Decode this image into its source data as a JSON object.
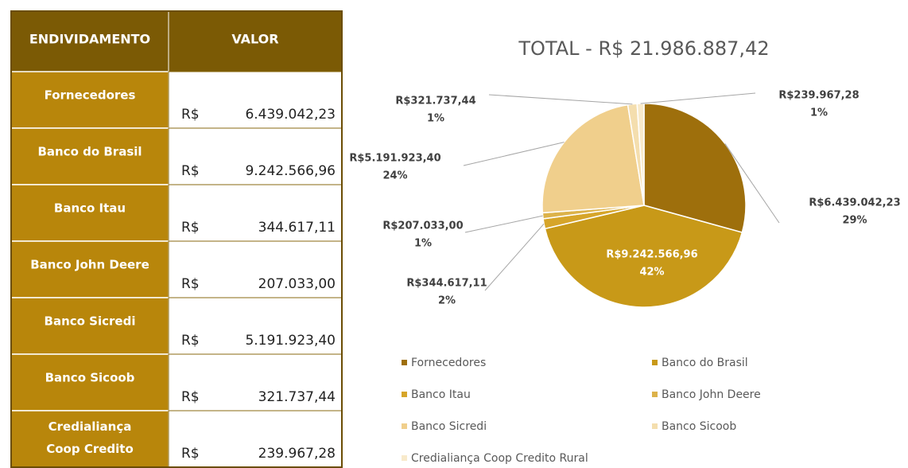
{
  "table": {
    "header": [
      "ENDIVIDAMENTO",
      "VALOR"
    ],
    "rows": [
      [
        "Fornecedores",
        "R$",
        "6.439.042,23"
      ],
      [
        "Banco do Brasil",
        "R$",
        "9.242.566,96"
      ],
      [
        "Banco Itau",
        "R$",
        "344.617,11"
      ],
      [
        "Banco John Deere",
        "R$",
        "207.033,00"
      ],
      [
        "Banco Sicredi",
        "R$",
        "5.191.923,40"
      ],
      [
        "Banco Sicoob",
        "R$",
        "321.737,44"
      ],
      [
        "Credialiança Coop Credito",
        "R$",
        "239.967,28"
      ]
    ]
  },
  "chart_data": {
    "type": "pie",
    "title": "TOTAL - R$ 21.986.887,42",
    "categories": [
      "Fornecedores",
      "Banco do Brasil",
      "Banco Itau",
      "Banco John Deere",
      "Banco Sicredi",
      "Banco Sicoob",
      "Credialiança Coop Credito Rural"
    ],
    "values": [
      6439042.23,
      9242566.96,
      344617.11,
      207033.0,
      5191923.4,
      321737.44,
      239967.28
    ],
    "value_labels": [
      "R$6.439.042,23",
      "R$9.242.566,96",
      "R$344.617,11",
      "R$207.033,00",
      "R$5.191.923,40",
      "R$321.737,44",
      "R$239.967,28"
    ],
    "percent_labels": [
      "29%",
      "42%",
      "2%",
      "1%",
      "24%",
      "1%",
      "1%"
    ],
    "colors": [
      "#9e6f0c",
      "#c89918",
      "#d6a52a",
      "#dcb24a",
      "#f0cf8c",
      "#f4deae",
      "#f8eacb"
    ],
    "legend": "bottom"
  }
}
